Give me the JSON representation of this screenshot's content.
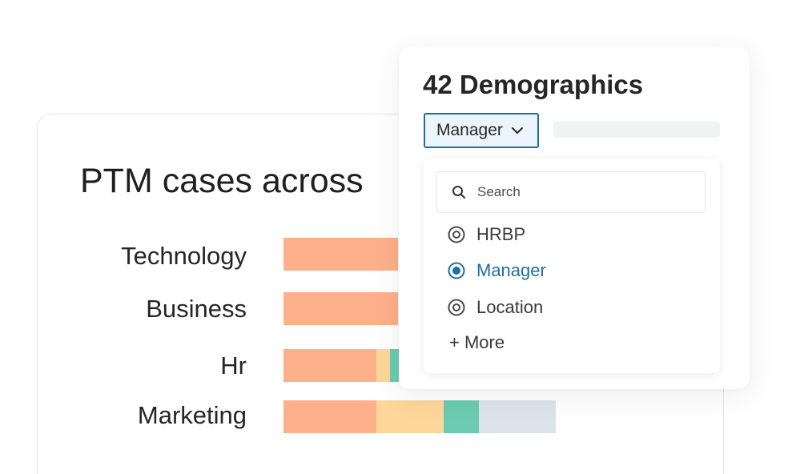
{
  "chart_card": {
    "title": "PTM cases across",
    "colors": {
      "segment_1": "#fdb08a",
      "segment_2": "#fdd69a",
      "segment_3": "#6ccbb0",
      "segment_4": "#dce3ea"
    }
  },
  "chart_data": {
    "type": "bar",
    "orientation": "horizontal",
    "stacked": true,
    "categories": [
      "Technology",
      "Business",
      "Hr",
      "Marketing"
    ],
    "series": [
      {
        "values": [
          143,
          143,
          116,
          116
        ]
      },
      {
        "values": [
          0,
          0,
          17,
          84
        ]
      },
      {
        "values": [
          0,
          0,
          11,
          44
        ]
      },
      {
        "values": [
          0,
          0,
          0,
          96
        ]
      }
    ],
    "title": "PTM cases across",
    "note_partially_hidden": "Technology, Business and Hr bars are partially covered by the popover panel"
  },
  "demographics_panel": {
    "title": "42 Demographics",
    "selected_value": "Manager",
    "search": {
      "placeholder": "Search",
      "icon": "search-icon"
    },
    "options": [
      {
        "label": "HRBP",
        "selected": false
      },
      {
        "label": "Manager",
        "selected": true
      },
      {
        "label": "Location",
        "selected": false
      }
    ],
    "more_label": "+ More",
    "accent_color": "#1f6fa0"
  }
}
